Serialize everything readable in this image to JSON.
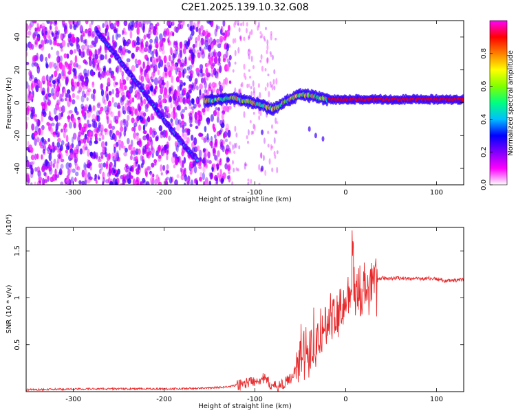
{
  "title": "C2E1.2025.139.10.32.G08",
  "chart_data": [
    {
      "type": "heatmap",
      "xlabel": "Height of straight line (km)",
      "ylabel": "Frequency (Hz)",
      "xlim": [
        -352,
        130
      ],
      "ylim": [
        -50,
        50
      ],
      "x_ticks": [
        -300,
        -200,
        -100,
        0,
        100
      ],
      "y_ticks": [
        -40,
        -20,
        0,
        20,
        40
      ],
      "colorbar": {
        "label": "Normalized spectral amplitude",
        "ticks": [
          0.0,
          0.2,
          0.4,
          0.6,
          0.8
        ],
        "range": [
          0,
          1
        ],
        "colors": [
          "#ffffff",
          "#ff00ff",
          "#7f00ff",
          "#0000ff",
          "#00bfff",
          "#00ff80",
          "#80ff00",
          "#ffff00",
          "#ff8000",
          "#ff0000",
          "#ff00ff"
        ]
      },
      "tracks": [
        {
          "points": [
            [
              -275,
              44
            ],
            [
              -255,
              30
            ],
            [
              -235,
              16
            ],
            [
              -215,
              1
            ],
            [
              -195,
              -14
            ],
            [
              -175,
              -28
            ],
            [
              -163,
              -35
            ]
          ],
          "amplitude": 0.3
        },
        {
          "points": [
            [
              -155,
              1
            ],
            [
              -140,
              2
            ],
            [
              -125,
              3
            ],
            [
              -110,
              1
            ],
            [
              -95,
              -1
            ],
            [
              -80,
              -4
            ],
            [
              -65,
              1
            ],
            [
              -50,
              5
            ],
            [
              -35,
              4
            ],
            [
              -20,
              2
            ],
            [
              0,
              2
            ],
            [
              40,
              2
            ],
            [
              80,
              2
            ],
            [
              100,
              2
            ],
            [
              130,
              2
            ]
          ],
          "amplitude": 0.85
        }
      ]
    },
    {
      "type": "line",
      "xlabel": "Height of straight line (km)",
      "ylabel": "SNR (10 * v/v)",
      "y_multiplier": "(x10⁴)",
      "xlim": [
        -352,
        130
      ],
      "ylim": [
        0,
        1.75
      ],
      "x_ticks": [
        -300,
        -200,
        -100,
        0,
        100
      ],
      "y_ticks": [
        0.5,
        1.0,
        1.5
      ],
      "color": "#e8282a",
      "series": [
        {
          "x": [
            -352,
            -320,
            -280,
            -240,
            -200,
            -160,
            -130,
            -110,
            -100,
            -90,
            -80,
            -70,
            -60,
            -50,
            -45,
            -40,
            -35,
            -30,
            -25,
            -20,
            -15,
            -10,
            -5,
            0,
            5,
            8,
            10,
            15,
            20,
            25,
            30,
            40,
            60,
            80,
            90,
            100,
            110,
            130
          ],
          "y": [
            0.02,
            0.025,
            0.03,
            0.03,
            0.03,
            0.035,
            0.05,
            0.09,
            0.12,
            0.14,
            0.05,
            0.07,
            0.15,
            0.35,
            0.48,
            0.5,
            0.55,
            0.6,
            0.65,
            0.72,
            0.78,
            0.85,
            0.9,
            0.95,
            1.1,
            1.55,
            0.95,
            0.98,
            1.02,
            1.08,
            1.16,
            1.21,
            1.21,
            1.2,
            1.21,
            1.2,
            1.18,
            1.19
          ]
        }
      ]
    }
  ]
}
